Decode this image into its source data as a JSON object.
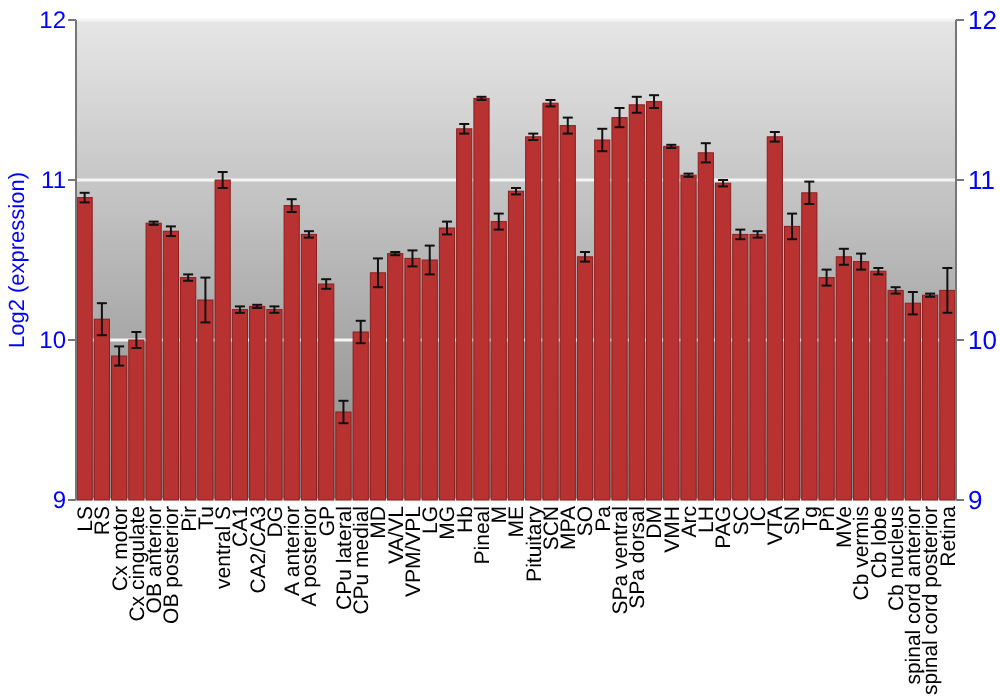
{
  "chart_data": {
    "type": "bar",
    "ylabel": "Log2 (expression)",
    "categories": [
      "LS",
      "RS",
      "Cx motor",
      "Cx cingulate",
      "OB anterior",
      "OB posterior",
      "Pir",
      "Tu",
      "ventral S",
      "CA1",
      "CA2/CA3",
      "DG",
      "A anterior",
      "A posterior",
      "GP",
      "CPu lateral",
      "CPu medial",
      "MD",
      "VA/VL",
      "VPM/VPL",
      "LG",
      "MG",
      "Hb",
      "Pineal",
      "M",
      "ME",
      "Pituitary",
      "SCN",
      "MPA",
      "SO",
      "Pa",
      "SPa ventral",
      "SPa dorsal",
      "DM",
      "VMH",
      "Arc",
      "LH",
      "PAG",
      "SC",
      "IC",
      "VTA",
      "SN",
      "Tg",
      "Pn",
      "MVe",
      "Cb vermis",
      "Cb lobe",
      "Cb nucleus",
      "spinal cord anterior",
      "spinal cord posterior",
      "Retina"
    ],
    "values": [
      10.89,
      10.13,
      9.9,
      10.0,
      10.73,
      10.68,
      10.39,
      10.25,
      11.0,
      10.19,
      10.21,
      10.19,
      10.84,
      10.66,
      10.35,
      9.55,
      10.05,
      10.42,
      10.54,
      10.51,
      10.5,
      10.7,
      11.32,
      11.51,
      10.74,
      10.93,
      11.27,
      11.48,
      11.34,
      10.52,
      11.25,
      11.39,
      11.47,
      11.49,
      11.21,
      11.03,
      11.17,
      10.98,
      10.66,
      10.66,
      11.27,
      10.71,
      10.92,
      10.39,
      10.52,
      10.49,
      10.43,
      10.31,
      10.23,
      10.28,
      10.31
    ],
    "errors": [
      0.03,
      0.1,
      0.06,
      0.05,
      0.01,
      0.03,
      0.02,
      0.14,
      0.05,
      0.02,
      0.01,
      0.02,
      0.04,
      0.02,
      0.03,
      0.07,
      0.07,
      0.09,
      0.01,
      0.05,
      0.09,
      0.04,
      0.03,
      0.01,
      0.05,
      0.02,
      0.02,
      0.02,
      0.05,
      0.03,
      0.07,
      0.06,
      0.05,
      0.04,
      0.01,
      0.01,
      0.06,
      0.02,
      0.03,
      0.02,
      0.03,
      0.08,
      0.07,
      0.05,
      0.05,
      0.05,
      0.02,
      0.02,
      0.07,
      0.01,
      0.14
    ],
    "color": "#b83232",
    "ylim": [
      9,
      12
    ],
    "yticks": [
      9,
      10,
      11,
      12
    ],
    "y2lim": [
      9,
      12
    ],
    "y2ticks": [
      9,
      10,
      11,
      12
    ],
    "grid": "y"
  }
}
